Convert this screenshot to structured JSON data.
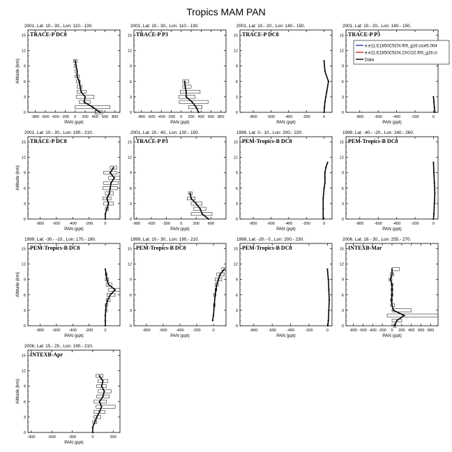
{
  "figure": {
    "title": "Tropics MAM PAN",
    "xlabel": "PAN (ppt)",
    "ylabel": "Altitude (km)"
  },
  "legend": {
    "placement": "top-right",
    "entries": [
      {
        "label": "e.e11.E1850C5CN.f09_g16.cice5.004",
        "color": "#1f3fbf"
      },
      {
        "label": "e.e11.E1850C5CN.2XCO2.f09_g16.ci",
        "color": "#cc2222"
      },
      {
        "label": "Data",
        "color": "#000000"
      }
    ]
  },
  "chart_data": [
    {
      "type": "line",
      "title": "2001, Lat: 10.- 30., Lon: 110.- 130.",
      "campaign": "TRACE-P DC8",
      "xticks": [
        -800,
        -600,
        -400,
        -200,
        0,
        200,
        400,
        600,
        800
      ],
      "xlim": [
        -950,
        900
      ],
      "yticks": [
        0,
        3,
        6,
        9,
        12,
        15
      ],
      "ylim": [
        0,
        16
      ],
      "series": [
        {
          "points": [
            [
              0,
              10
            ],
            [
              20,
              9
            ],
            [
              40,
              8
            ],
            [
              40,
              7
            ],
            [
              80,
              6
            ],
            [
              100,
              5
            ],
            [
              120,
              4
            ],
            [
              200,
              3
            ],
            [
              180,
              2
            ],
            [
              350,
              1
            ],
            [
              500,
              0
            ]
          ],
          "errors": [
            [
              -30,
              40
            ],
            [
              -20,
              20
            ],
            [
              0,
              40
            ],
            [
              0,
              80
            ],
            [
              20,
              100
            ],
            [
              40,
              140
            ],
            [
              40,
              220
            ],
            [
              20,
              380
            ],
            [
              80,
              300
            ],
            [
              0,
              700
            ],
            [
              400,
              550
            ]
          ]
        }
      ]
    },
    {
      "type": "line",
      "title": "2001, Lat: 10.- 30., Lon: 110.- 130.",
      "campaign": "TRACE-P P3",
      "xticks": [
        -800,
        -600,
        -400,
        -200,
        0,
        200,
        400,
        600,
        800
      ],
      "xlim": [
        -950,
        900
      ],
      "yticks": [
        0,
        3,
        6,
        9,
        12,
        15
      ],
      "ylim": [
        0,
        16
      ],
      "series": [
        {
          "points": [
            [
              70,
              6
            ],
            [
              80,
              5
            ],
            [
              100,
              4
            ],
            [
              100,
              3
            ],
            [
              220,
              2
            ],
            [
              300,
              1
            ],
            [
              350,
              0
            ]
          ],
          "errors": [
            [
              30,
              150
            ],
            [
              30,
              200
            ],
            [
              -20,
              380
            ],
            [
              -50,
              280
            ],
            [
              -40,
              540
            ],
            [
              150,
              420
            ],
            [
              350,
              350
            ]
          ]
        }
      ]
    },
    {
      "type": "line",
      "title": "2001, Lat: 10.- 20., Lon: 140.- 150.",
      "campaign": "TRACE-P DC8",
      "xticks": [
        -800,
        -600,
        -400,
        -200,
        0
      ],
      "xlim": [
        -950,
        90
      ],
      "yticks": [
        0,
        3,
        6,
        9,
        12,
        15
      ],
      "ylim": [
        0,
        16
      ],
      "series": [
        {
          "points": [
            [
              0,
              10
            ],
            [
              10,
              8
            ],
            [
              50,
              6
            ],
            [
              30,
              4
            ],
            [
              20,
              3
            ],
            [
              10,
              2
            ],
            [
              5,
              1
            ],
            [
              0,
              0
            ]
          ],
          "errors": []
        }
      ]
    },
    {
      "type": "line",
      "title": "2001, Lat: 10.- 20., Lon: 140.- 150.",
      "campaign": "TRACE-P P3",
      "xticks": [
        -800,
        -600,
        -400,
        -200,
        0
      ],
      "xlim": [
        -950,
        50
      ],
      "yticks": [
        0,
        3,
        6,
        9,
        12,
        15
      ],
      "ylim": [
        0,
        16
      ],
      "series": [
        {
          "points": [
            [
              0,
              3
            ],
            [
              5,
              2
            ],
            [
              10,
              1
            ],
            [
              15,
              0
            ]
          ],
          "errors": []
        }
      ]
    },
    {
      "type": "line",
      "title": "2001, Lat: 10.- 30., Lon: 190.- 210.",
      "campaign": "TRACE-P DC8",
      "xticks": [
        -800,
        -600,
        -400,
        -200,
        0
      ],
      "xlim": [
        -950,
        180
      ],
      "yticks": [
        0,
        3,
        6,
        9,
        12,
        15
      ],
      "ylim": [
        0,
        16
      ],
      "series": [
        {
          "points": [
            [
              100,
              10
            ],
            [
              60,
              9
            ],
            [
              110,
              8
            ],
            [
              70,
              7
            ],
            [
              60,
              6
            ],
            [
              50,
              5
            ],
            [
              20,
              4
            ],
            [
              40,
              3
            ],
            [
              20,
              2
            ],
            [
              0,
              1
            ],
            [
              0,
              0
            ]
          ],
          "errors": [
            [
              60,
              140
            ],
            [
              -20,
              140
            ],
            [
              40,
              180
            ],
            [
              -20,
              160
            ],
            [
              -30,
              150
            ],
            [
              0,
              100
            ],
            [
              -30,
              70
            ],
            [
              -20,
              100
            ],
            [
              0,
              40
            ],
            [
              0,
              0
            ],
            [
              0,
              0
            ]
          ]
        }
      ]
    },
    {
      "type": "line",
      "title": "2001, Lat: 20.- 40., Lon: 130.- 150.",
      "campaign": "TRACE-P P3",
      "xticks": [
        -900,
        -600,
        -300,
        0,
        300,
        600
      ],
      "xlim": [
        -950,
        900
      ],
      "yticks": [
        0,
        3,
        6,
        9,
        12,
        15
      ],
      "ylim": [
        0,
        16
      ],
      "series": [
        {
          "points": [
            [
              180,
              5
            ],
            [
              200,
              4
            ],
            [
              300,
              3
            ],
            [
              380,
              2
            ],
            [
              420,
              1
            ],
            [
              550,
              0
            ]
          ],
          "errors": [
            [
              150,
              220
            ],
            [
              120,
              280
            ],
            [
              200,
              420
            ],
            [
              250,
              500
            ],
            [
              200,
              620
            ],
            [
              550,
              550
            ]
          ]
        }
      ]
    },
    {
      "type": "line",
      "title": "1999, Lat: 0.- 10., Lon: 200.- 220.",
      "campaign": "PEM-Tropics-B DC8",
      "xticks": [
        -800,
        -600,
        -400,
        -200,
        0
      ],
      "xlim": [
        -950,
        90
      ],
      "yticks": [
        0,
        3,
        6,
        9,
        12,
        15
      ],
      "ylim": [
        0,
        16
      ],
      "series": [
        {
          "points": [
            [
              40,
              11
            ],
            [
              20,
              10
            ],
            [
              10,
              9
            ],
            [
              10,
              8
            ],
            [
              10,
              7
            ],
            [
              0,
              6
            ],
            [
              -10,
              4
            ],
            [
              -10,
              2
            ],
            [
              -10,
              0
            ]
          ],
          "errors": []
        }
      ]
    },
    {
      "type": "line",
      "title": "1999, Lat: -40.- -20., Lon: 240.- 260.",
      "campaign": "PEM-Tropics-B DC8",
      "xticks": [
        -800,
        -600,
        -400,
        -200,
        0
      ],
      "xlim": [
        -950,
        50
      ],
      "yticks": [
        0,
        3,
        6,
        9,
        12,
        15
      ],
      "ylim": [
        0,
        16
      ],
      "series": [
        {
          "points": [
            [
              0,
              11
            ],
            [
              5,
              9
            ],
            [
              10,
              7
            ],
            [
              15,
              5
            ],
            [
              10,
              3
            ],
            [
              5,
              1
            ],
            [
              0,
              0
            ]
          ],
          "errors": []
        }
      ]
    },
    {
      "type": "line",
      "title": "1999, Lat: -30.- -10., Lon: 170.- 190.",
      "campaign": "PEM-Tropics-B DC8",
      "xticks": [
        -800,
        -600,
        -400,
        -200,
        0
      ],
      "xlim": [
        -950,
        180
      ],
      "yticks": [
        0,
        3,
        6,
        9,
        12,
        15
      ],
      "ylim": [
        0,
        16
      ],
      "series": [
        {
          "points": [
            [
              0,
              11
            ],
            [
              10,
              10
            ],
            [
              20,
              9
            ],
            [
              40,
              8
            ],
            [
              120,
              7
            ],
            [
              60,
              6
            ],
            [
              30,
              5
            ],
            [
              10,
              4
            ],
            [
              5,
              3
            ],
            [
              0,
              2
            ],
            [
              0,
              1
            ],
            [
              0,
              0
            ]
          ],
          "errors": [
            [
              0,
              0
            ],
            [
              0,
              20
            ],
            [
              0,
              40
            ],
            [
              10,
              80
            ],
            [
              40,
              180
            ],
            [
              20,
              120
            ],
            [
              10,
              60
            ],
            [
              0,
              30
            ],
            [
              0,
              20
            ],
            [
              0,
              0
            ],
            [
              0,
              0
            ],
            [
              0,
              0
            ]
          ]
        }
      ]
    },
    {
      "type": "line",
      "title": "1999, Lat: 10.- 30., Lon: 190.- 210.",
      "campaign": "PEM-Tropics-B DC8",
      "xticks": [
        -800,
        -600,
        -400,
        -200,
        0
      ],
      "xlim": [
        -950,
        150
      ],
      "yticks": [
        0,
        3,
        6,
        9,
        12,
        15
      ],
      "ylim": [
        0,
        16
      ],
      "series": [
        {
          "points": [
            [
              130,
              11
            ],
            [
              80,
              10
            ],
            [
              60,
              9
            ],
            [
              40,
              8
            ],
            [
              30,
              7
            ],
            [
              20,
              6
            ],
            [
              10,
              4
            ],
            [
              0,
              2
            ],
            [
              -10,
              1
            ]
          ],
          "errors": [
            [
              100,
              160
            ],
            [
              40,
              130
            ],
            [
              20,
              100
            ],
            [
              20,
              60
            ],
            [
              20,
              40
            ],
            [
              0,
              30
            ],
            [
              0,
              20
            ],
            [
              0,
              0
            ],
            [
              0,
              0
            ]
          ]
        }
      ]
    },
    {
      "type": "line",
      "title": "1999, Lat: -20.- 0., Lon: 200.- 230.",
      "campaign": "PEM-Tropics-B DC8",
      "xticks": [
        -800,
        -600,
        -400,
        -200,
        0
      ],
      "xlim": [
        -950,
        50
      ],
      "yticks": [
        0,
        3,
        6,
        9,
        12,
        15
      ],
      "ylim": [
        0,
        16
      ],
      "series": [
        {
          "points": [
            [
              0,
              11
            ],
            [
              10,
              9
            ],
            [
              15,
              7
            ],
            [
              20,
              5
            ],
            [
              15,
              3
            ],
            [
              10,
              1
            ],
            [
              5,
              0
            ]
          ],
          "errors": []
        }
      ]
    },
    {
      "type": "line",
      "title": "2006, Lat: 18.- 30., Lon: 255.- 270.",
      "campaign": "INTEXB-Mar",
      "xticks": [
        -800,
        -600,
        -400,
        -200,
        0,
        200,
        400,
        600,
        800
      ],
      "xlim": [
        -950,
        950
      ],
      "yticks": [
        0,
        3,
        6,
        9,
        12,
        15
      ],
      "ylim": [
        0,
        16
      ],
      "series": [
        {
          "points": [
            [
              0,
              11
            ],
            [
              0,
              10
            ],
            [
              -30,
              9
            ],
            [
              0,
              8
            ],
            [
              0,
              7
            ],
            [
              0,
              6
            ],
            [
              -10,
              5
            ],
            [
              0,
              4
            ],
            [
              30,
              3
            ],
            [
              250,
              2
            ],
            [
              100,
              1
            ],
            [
              50,
              0
            ]
          ],
          "errors": [
            [
              0,
              150
            ],
            [
              -40,
              40
            ],
            [
              -60,
              0
            ],
            [
              -20,
              20
            ],
            [
              -20,
              20
            ],
            [
              -20,
              20
            ],
            [
              -30,
              10
            ],
            [
              -30,
              50
            ],
            [
              0,
              400
            ],
            [
              -100,
              950
            ],
            [
              0,
              200
            ],
            [
              30,
              80
            ]
          ]
        }
      ]
    },
    {
      "type": "line",
      "title": "2006, Lat: 15.- 25., Lon: 190.- 210.",
      "campaign": "INTEXB-Apr",
      "xticks": [
        -900,
        -600,
        -300,
        0,
        300
      ],
      "xlim": [
        -950,
        400
      ],
      "yticks": [
        0,
        3,
        6,
        9,
        12,
        15
      ],
      "ylim": [
        0,
        16
      ],
      "series": [
        {
          "points": [
            [
              100,
              11
            ],
            [
              150,
              10
            ],
            [
              130,
              9
            ],
            [
              170,
              8
            ],
            [
              150,
              7
            ],
            [
              100,
              6
            ],
            [
              130,
              5
            ],
            [
              100,
              4
            ],
            [
              60,
              3
            ],
            [
              30,
              2
            ],
            [
              0,
              1
            ],
            [
              0,
              0
            ]
          ],
          "errors": [
            [
              50,
              150
            ],
            [
              80,
              220
            ],
            [
              60,
              200
            ],
            [
              80,
              270
            ],
            [
              60,
              240
            ],
            [
              20,
              200
            ],
            [
              50,
              330
            ],
            [
              20,
              180
            ],
            [
              20,
              120
            ],
            [
              0,
              60
            ],
            [
              0,
              0
            ],
            [
              0,
              0
            ]
          ]
        }
      ]
    }
  ]
}
